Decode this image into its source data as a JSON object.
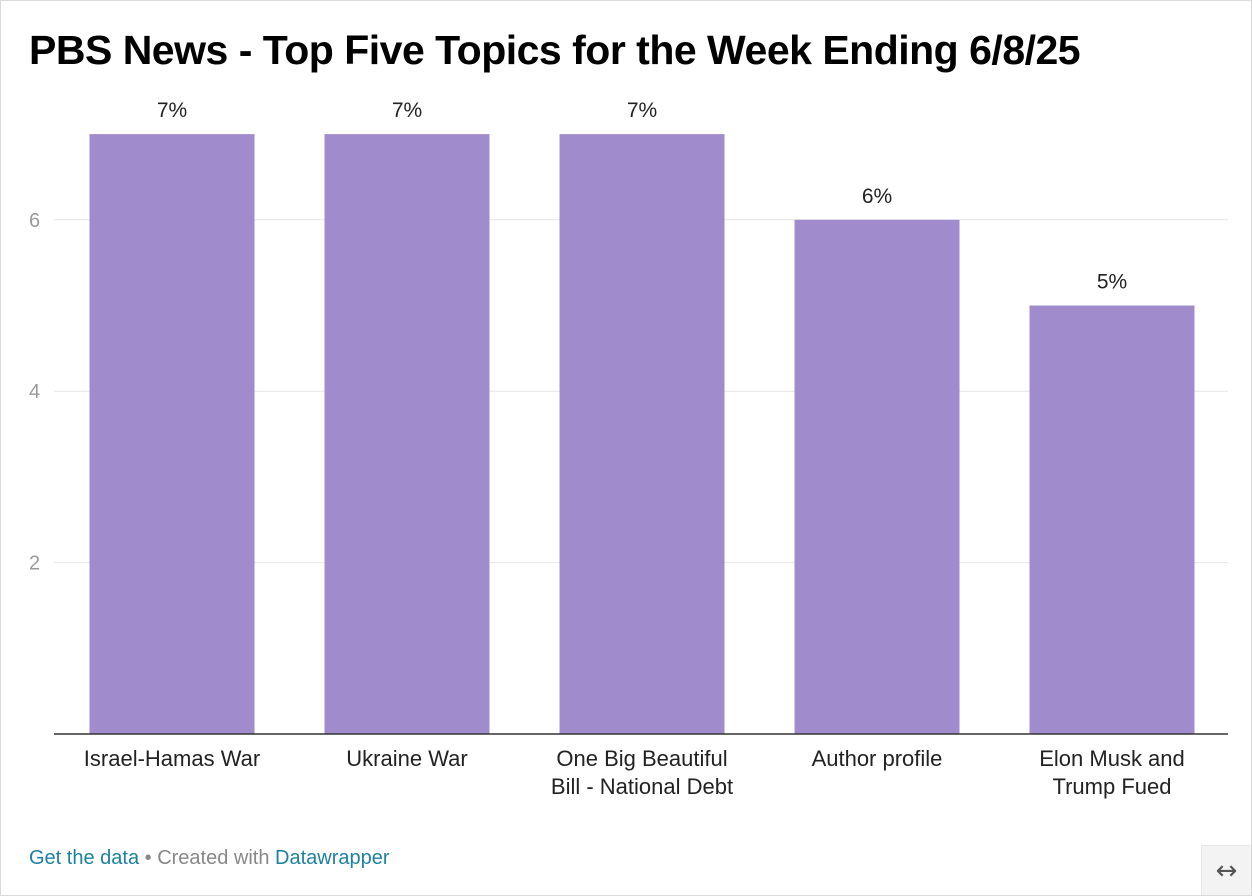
{
  "title": "PBS News - Top Five Topics for the Week Ending 6/8/25",
  "chart_data": {
    "type": "bar",
    "categories": [
      [
        "Israel-Hamas War"
      ],
      [
        "Ukraine War"
      ],
      [
        "One Big Beautiful",
        "Bill - National Debt"
      ],
      [
        "Author profile"
      ],
      [
        "Elon Musk and",
        "Trump Fued"
      ]
    ],
    "values": [
      7,
      7,
      7,
      6,
      5
    ],
    "value_labels": [
      "7%",
      "7%",
      "7%",
      "6%",
      "5%"
    ],
    "yticks": [
      2,
      4,
      6
    ],
    "ylim": [
      0,
      7
    ],
    "grid": true,
    "bar_color": "#a08ccc"
  },
  "footer": {
    "get_data": "Get the data",
    "separator": " • Created with ",
    "datawrapper": "Datawrapper"
  },
  "resize_icon": "↔"
}
